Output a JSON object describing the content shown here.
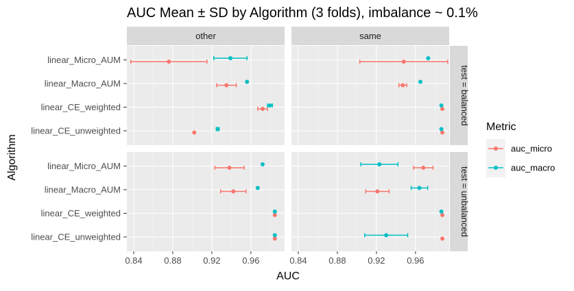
{
  "chart_data": {
    "type": "scatter",
    "title": "AUC Mean ± SD by Algorithm (3 folds), imbalance ~ 0.1%",
    "xlabel": "AUC",
    "ylabel": "Algorithm",
    "xlim": [
      0.833,
      0.9945
    ],
    "x_ticks": [
      "0.84",
      "0.88",
      "0.92",
      "0.96"
    ],
    "x_tick_values": [
      0.84,
      0.88,
      0.92,
      0.96
    ],
    "algorithms": [
      "linear_Micro_AUM",
      "linear_Macro_AUM",
      "linear_CE_weighted",
      "linear_CE_unweighted"
    ],
    "columns": [
      "other",
      "same"
    ],
    "rows": [
      "test = balanced",
      "test = unbalanced"
    ],
    "legend": {
      "title": "Metric",
      "placement": "right",
      "entries": [
        {
          "key": "auc_micro",
          "label": "auc_micro",
          "color": "#F8766D"
        },
        {
          "key": "auc_macro",
          "label": "auc_macro",
          "color": "#00BFC4"
        }
      ]
    },
    "panel_background": "#ebebeb",
    "strip_background": "#d9d9d9",
    "grid": true,
    "panels": [
      {
        "column": "other",
        "row": "test = balanced",
        "series": [
          {
            "metric": "auc_micro",
            "points": [
              {
                "algorithm": "linear_Micro_AUM",
                "mean": 0.876,
                "sd": 0.039
              },
              {
                "algorithm": "linear_Macro_AUM",
                "mean": 0.935,
                "sd": 0.01
              },
              {
                "algorithm": "linear_CE_weighted",
                "mean": 0.972,
                "sd": 0.005
              },
              {
                "algorithm": "linear_CE_unweighted",
                "mean": 0.902,
                "sd": 0
              }
            ]
          },
          {
            "metric": "auc_macro",
            "points": [
              {
                "algorithm": "linear_Micro_AUM",
                "mean": 0.939,
                "sd": 0.017
              },
              {
                "algorithm": "linear_Macro_AUM",
                "mean": 0.956,
                "sd": 0
              },
              {
                "algorithm": "linear_CE_weighted",
                "mean": 0.9795,
                "sd": 0.0025
              },
              {
                "algorithm": "linear_CE_unweighted",
                "mean": 0.926,
                "sd": 0.0015
              }
            ]
          }
        ]
      },
      {
        "column": "same",
        "row": "test = balanced",
        "series": [
          {
            "metric": "auc_micro",
            "points": [
              {
                "algorithm": "linear_Micro_AUM",
                "mean": 0.948,
                "sd": 0.045
              },
              {
                "algorithm": "linear_Macro_AUM",
                "mean": 0.947,
                "sd": 0.004
              },
              {
                "algorithm": "linear_CE_weighted",
                "mean": 0.9875,
                "sd": 0
              },
              {
                "algorithm": "linear_CE_unweighted",
                "mean": 0.9875,
                "sd": 0
              }
            ]
          },
          {
            "metric": "auc_macro",
            "points": [
              {
                "algorithm": "linear_Micro_AUM",
                "mean": 0.973,
                "sd": 0
              },
              {
                "algorithm": "linear_Macro_AUM",
                "mean": 0.965,
                "sd": 0
              },
              {
                "algorithm": "linear_CE_weighted",
                "mean": 0.9865,
                "sd": 0
              },
              {
                "algorithm": "linear_CE_unweighted",
                "mean": 0.9865,
                "sd": 0
              }
            ]
          }
        ]
      },
      {
        "column": "other",
        "row": "test = unbalanced",
        "series": [
          {
            "metric": "auc_micro",
            "points": [
              {
                "algorithm": "linear_Micro_AUM",
                "mean": 0.938,
                "sd": 0.015
              },
              {
                "algorithm": "linear_Macro_AUM",
                "mean": 0.942,
                "sd": 0.013
              },
              {
                "algorithm": "linear_CE_weighted",
                "mean": 0.9845,
                "sd": 0
              },
              {
                "algorithm": "linear_CE_unweighted",
                "mean": 0.9845,
                "sd": 0
              }
            ]
          },
          {
            "metric": "auc_macro",
            "points": [
              {
                "algorithm": "linear_Micro_AUM",
                "mean": 0.972,
                "sd": 0
              },
              {
                "algorithm": "linear_Macro_AUM",
                "mean": 0.967,
                "sd": 0
              },
              {
                "algorithm": "linear_CE_weighted",
                "mean": 0.9845,
                "sd": 0
              },
              {
                "algorithm": "linear_CE_unweighted",
                "mean": 0.9845,
                "sd": 0
              }
            ]
          }
        ]
      },
      {
        "column": "same",
        "row": "test = unbalanced",
        "series": [
          {
            "metric": "auc_micro",
            "points": [
              {
                "algorithm": "linear_Micro_AUM",
                "mean": 0.968,
                "sd": 0.01
              },
              {
                "algorithm": "linear_Macro_AUM",
                "mean": 0.921,
                "sd": 0.012
              },
              {
                "algorithm": "linear_CE_weighted",
                "mean": 0.9875,
                "sd": 0
              },
              {
                "algorithm": "linear_CE_unweighted",
                "mean": 0.9875,
                "sd": 0
              }
            ]
          },
          {
            "metric": "auc_macro",
            "points": [
              {
                "algorithm": "linear_Micro_AUM",
                "mean": 0.923,
                "sd": 0.019
              },
              {
                "algorithm": "linear_Macro_AUM",
                "mean": 0.964,
                "sd": 0.0085
              },
              {
                "algorithm": "linear_CE_weighted",
                "mean": 0.9865,
                "sd": 0
              },
              {
                "algorithm": "linear_CE_unweighted",
                "mean": 0.93,
                "sd": 0.022
              }
            ]
          }
        ]
      }
    ]
  }
}
